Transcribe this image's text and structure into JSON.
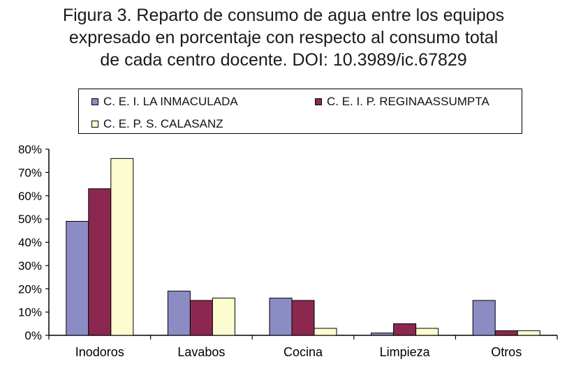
{
  "title_lines": [
    "Figura 3. Reparto de consumo de agua entre los equipos",
    "expresado en porcentaje con respecto al consumo total",
    "de cada centro docente. DOI: 10.3989/ic.67829"
  ],
  "colors": {
    "series1": "#8c8cc4",
    "series2": "#8c2850",
    "series3": "#fcfcd0"
  },
  "chart_data": {
    "type": "bar",
    "title": "Figura 3. Reparto de consumo de agua entre los equipos expresado en porcentaje con respecto al consumo total de cada centro docente. DOI: 10.3989/ic.67829",
    "categories": [
      "Inodoros",
      "Lavabos",
      "Cocina",
      "Limpieza",
      "Otros"
    ],
    "series": [
      {
        "name": "C. E. I. LA INMACULADA",
        "values": [
          49,
          19,
          16,
          1,
          15
        ]
      },
      {
        "name": "C. E. I. P. REGINAASSUMPTA",
        "values": [
          63,
          15,
          15,
          5,
          2
        ]
      },
      {
        "name": "C. E. P. S. CALASANZ",
        "values": [
          76,
          16,
          3,
          3,
          2
        ]
      }
    ],
    "ylim": [
      0,
      80
    ],
    "yticks": [
      0,
      10,
      20,
      30,
      40,
      50,
      60,
      70,
      80
    ],
    "ytick_labels": [
      "0%",
      "10%",
      "20%",
      "30%",
      "40%",
      "50%",
      "60%",
      "70%",
      "80%"
    ],
    "legend_position": "top",
    "grid": false
  }
}
